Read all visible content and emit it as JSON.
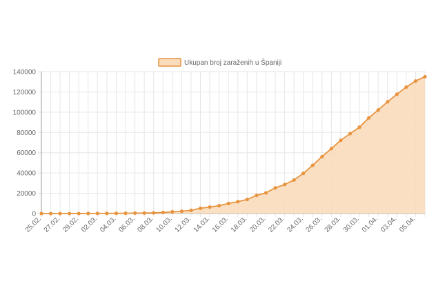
{
  "chart_data": {
    "type": "area",
    "legend": {
      "label": "Ukupan broj zaraženih u Španiji",
      "position": "top"
    },
    "series": [
      {
        "name": "Ukupan broj zaraženih u Španiji",
        "values": [
          6,
          13,
          15,
          32,
          45,
          84,
          120,
          165,
          222,
          259,
          400,
          500,
          673,
          1073,
          1695,
          2277,
          3146,
          5232,
          6391,
          7798,
          9942,
          11748,
          13910,
          17963,
          20410,
          25374,
          28603,
          33089,
          39673,
          47610,
          56188,
          64059,
          72248,
          78797,
          85195,
          94417,
          102136,
          110238,
          117710,
          124736,
          130759,
          135032
        ]
      }
    ],
    "x_tick_labels": [
      "25.02.",
      "27.02.",
      "29.02.",
      "02.03.",
      "04.03.",
      "06.03.",
      "08.03.",
      "10.03.",
      "12.03.",
      "14.03.",
      "16.03.",
      "18.03.",
      "20.03.",
      "22.03.",
      "24.03.",
      "26.03.",
      "28.03.",
      "30.03.",
      "01.04.",
      "03.04.",
      "05.04."
    ],
    "y_ticks": [
      "0",
      "20000",
      "40000",
      "60000",
      "80000",
      "100000",
      "120000",
      "140000"
    ],
    "ylim": [
      0,
      140000
    ],
    "grid": true,
    "colors": {
      "line": "#e8943e",
      "fill": "#f9dcbc",
      "grid": "#e6e6e6",
      "axis": "#999999"
    }
  }
}
